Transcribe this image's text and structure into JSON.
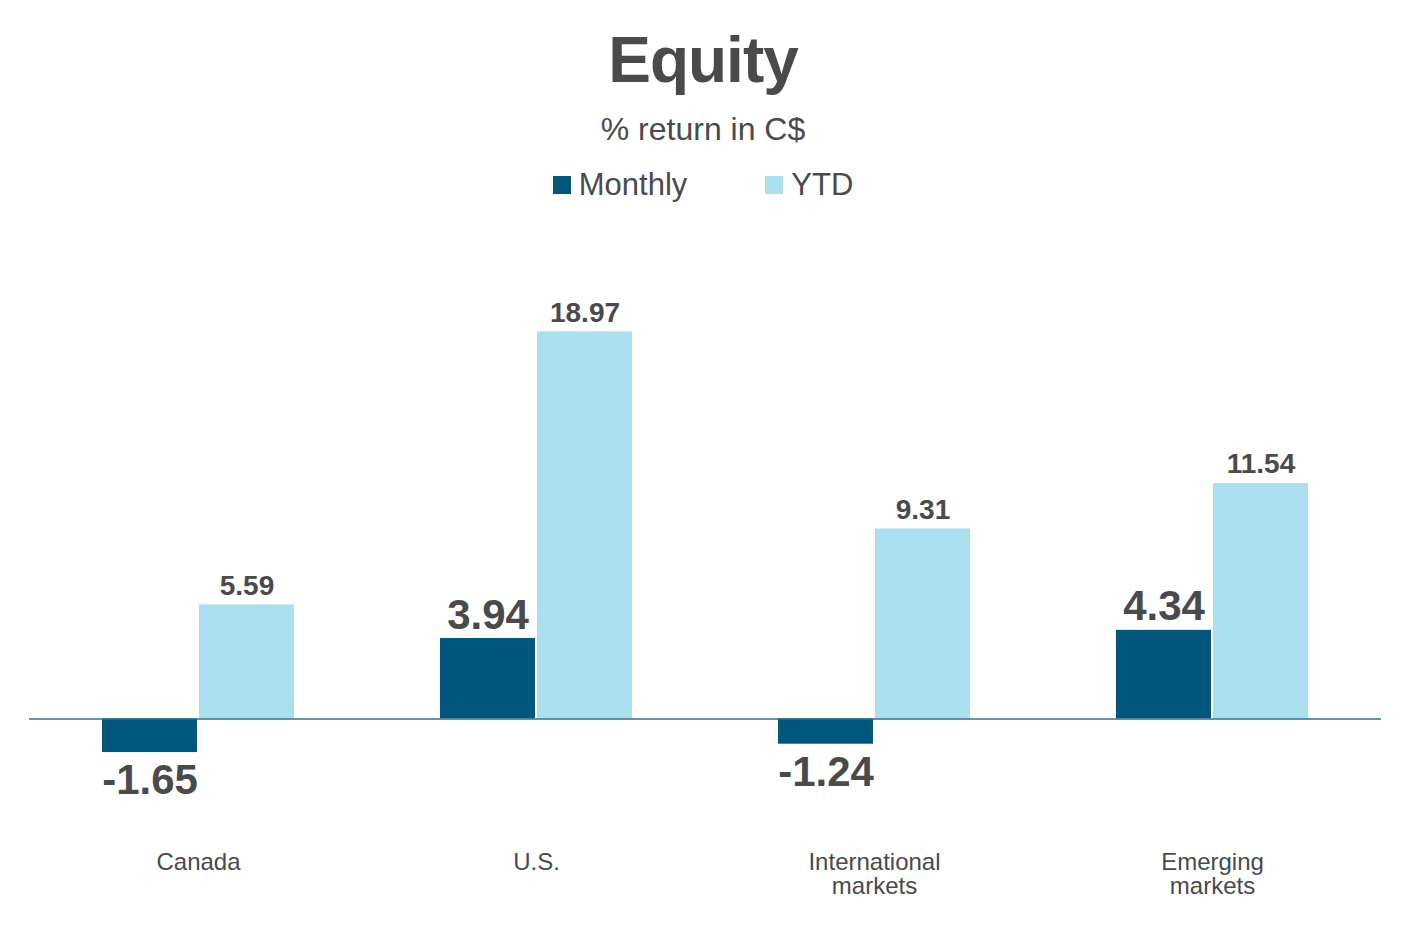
{
  "chart_data": {
    "type": "bar",
    "title": "Equity",
    "subtitle": "% return in C$",
    "categories": [
      "Canada",
      "U.S.",
      "International markets",
      "Emerging markets"
    ],
    "series": [
      {
        "name": "Monthly",
        "color": "#00567d",
        "values": [
          -1.65,
          3.94,
          -1.24,
          4.34
        ]
      },
      {
        "name": "YTD",
        "color": "#aadff0",
        "values": [
          5.59,
          18.97,
          9.31,
          11.54
        ]
      }
    ],
    "ylim": [
      -4,
      21
    ],
    "data_labels": true,
    "tick_labels": "x",
    "legend": "top"
  }
}
